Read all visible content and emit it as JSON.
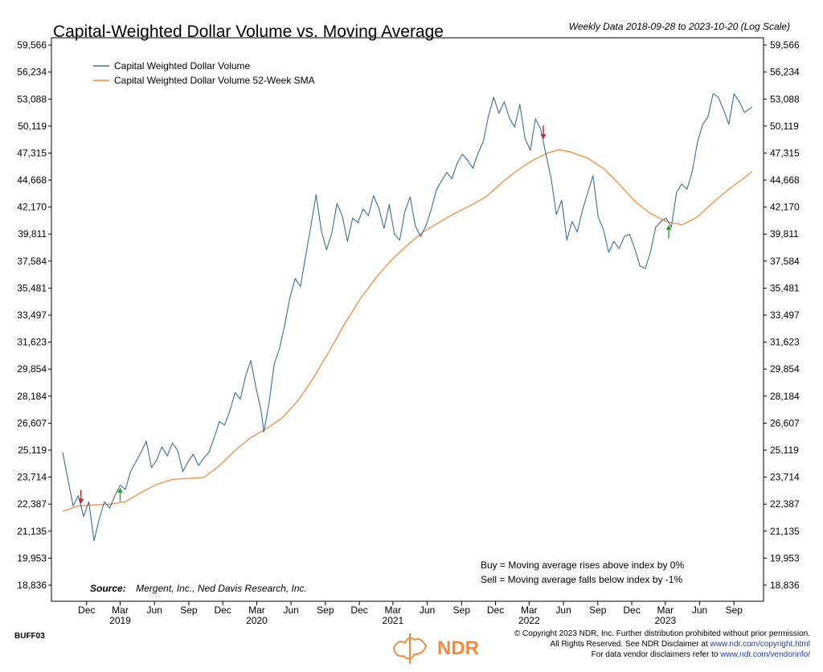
{
  "chart_data": {
    "type": "line",
    "title": "Capital-Weighted Dollar Volume vs. Moving Average",
    "subtitle": "Weekly Data 2018-09-28 to 2023-10-20 (Log Scale)",
    "y_scale": "log",
    "ylim": [
      18200,
      60500
    ],
    "y_ticks": [
      18836,
      19953,
      21135,
      22387,
      23714,
      25119,
      26607,
      28184,
      29854,
      31623,
      33497,
      35481,
      37584,
      39811,
      42170,
      44668,
      47315,
      50119,
      53088,
      56234,
      59566
    ],
    "y_tick_labels": [
      "18,836",
      "19,953",
      "21,135",
      "22,387",
      "23,714",
      "25,119",
      "26,607",
      "28,184",
      "29,854",
      "31,623",
      "33,497",
      "35,481",
      "37,584",
      "39,811",
      "42,170",
      "44,668",
      "47,315",
      "50,119",
      "53,088",
      "56,234",
      "59,566"
    ],
    "x_range": [
      "2018-09-28",
      "2023-10-20"
    ],
    "x_ticks": [
      {
        "date": "2018-12-01",
        "label": "Dec"
      },
      {
        "date": "2019-03-01",
        "label": "Mar"
      },
      {
        "date": "2019-06-01",
        "label": "Jun"
      },
      {
        "date": "2019-09-01",
        "label": "Sep"
      },
      {
        "date": "2019-12-01",
        "label": "Dec"
      },
      {
        "date": "2020-03-01",
        "label": "Mar"
      },
      {
        "date": "2020-06-01",
        "label": "Jun"
      },
      {
        "date": "2020-09-01",
        "label": "Sep"
      },
      {
        "date": "2020-12-01",
        "label": "Dec"
      },
      {
        "date": "2021-03-01",
        "label": "Mar"
      },
      {
        "date": "2021-06-01",
        "label": "Jun"
      },
      {
        "date": "2021-09-01",
        "label": "Sep"
      },
      {
        "date": "2021-12-01",
        "label": "Dec"
      },
      {
        "date": "2022-03-01",
        "label": "Mar"
      },
      {
        "date": "2022-06-01",
        "label": "Jun"
      },
      {
        "date": "2022-09-01",
        "label": "Sep"
      },
      {
        "date": "2022-12-01",
        "label": "Dec"
      },
      {
        "date": "2023-03-01",
        "label": "Mar"
      },
      {
        "date": "2023-06-01",
        "label": "Jun"
      },
      {
        "date": "2023-09-01",
        "label": "Sep"
      }
    ],
    "year_labels": [
      {
        "date": "2019-03-01",
        "label": "2019"
      },
      {
        "date": "2020-03-01",
        "label": "2020"
      },
      {
        "date": "2021-03-01",
        "label": "2021"
      },
      {
        "date": "2022-03-01",
        "label": "2022"
      },
      {
        "date": "2023-03-01",
        "label": "2023"
      }
    ],
    "series": [
      {
        "name": "Capital Weighted Dollar Volume",
        "color": "#3b6e93",
        "points": [
          [
            "2018-09-28",
            25000
          ],
          [
            "2018-10-12",
            23600
          ],
          [
            "2018-10-26",
            22300
          ],
          [
            "2018-11-09",
            22800
          ],
          [
            "2018-11-23",
            21800
          ],
          [
            "2018-12-07",
            22500
          ],
          [
            "2018-12-21",
            20700
          ],
          [
            "2019-01-04",
            21700
          ],
          [
            "2019-01-18",
            22500
          ],
          [
            "2019-02-01",
            22200
          ],
          [
            "2019-02-15",
            22800
          ],
          [
            "2019-03-01",
            23300
          ],
          [
            "2019-03-15",
            23100
          ],
          [
            "2019-03-29",
            24000
          ],
          [
            "2019-04-12",
            24500
          ],
          [
            "2019-04-26",
            25000
          ],
          [
            "2019-05-10",
            25600
          ],
          [
            "2019-05-24",
            24200
          ],
          [
            "2019-06-07",
            24600
          ],
          [
            "2019-06-21",
            25300
          ],
          [
            "2019-07-05",
            24800
          ],
          [
            "2019-07-19",
            25500
          ],
          [
            "2019-08-02",
            25100
          ],
          [
            "2019-08-16",
            24000
          ],
          [
            "2019-08-30",
            24500
          ],
          [
            "2019-09-13",
            24900
          ],
          [
            "2019-09-27",
            24300
          ],
          [
            "2019-10-11",
            24700
          ],
          [
            "2019-10-25",
            25000
          ],
          [
            "2019-11-08",
            25800
          ],
          [
            "2019-11-22",
            26700
          ],
          [
            "2019-12-06",
            26500
          ],
          [
            "2019-12-20",
            27300
          ],
          [
            "2020-01-03",
            28400
          ],
          [
            "2020-01-17",
            28000
          ],
          [
            "2020-01-31",
            29400
          ],
          [
            "2020-02-14",
            30400
          ],
          [
            "2020-02-28",
            28700
          ],
          [
            "2020-03-13",
            27300
          ],
          [
            "2020-03-20",
            26100
          ],
          [
            "2020-04-03",
            27800
          ],
          [
            "2020-04-17",
            30200
          ],
          [
            "2020-05-01",
            31200
          ],
          [
            "2020-05-15",
            32800
          ],
          [
            "2020-05-29",
            34800
          ],
          [
            "2020-06-12",
            36200
          ],
          [
            "2020-06-26",
            35600
          ],
          [
            "2020-07-10",
            38000
          ],
          [
            "2020-07-24",
            40500
          ],
          [
            "2020-08-07",
            43300
          ],
          [
            "2020-08-21",
            40100
          ],
          [
            "2020-09-04",
            38500
          ],
          [
            "2020-09-18",
            39900
          ],
          [
            "2020-10-02",
            42500
          ],
          [
            "2020-10-16",
            41400
          ],
          [
            "2020-10-30",
            39200
          ],
          [
            "2020-11-13",
            41200
          ],
          [
            "2020-11-27",
            40800
          ],
          [
            "2020-12-11",
            42000
          ],
          [
            "2020-12-25",
            41400
          ],
          [
            "2021-01-08",
            43200
          ],
          [
            "2021-01-22",
            42100
          ],
          [
            "2021-02-05",
            40300
          ],
          [
            "2021-02-19",
            42400
          ],
          [
            "2021-03-05",
            39800
          ],
          [
            "2021-03-19",
            39300
          ],
          [
            "2021-04-02",
            41800
          ],
          [
            "2021-04-16",
            43100
          ],
          [
            "2021-04-30",
            40500
          ],
          [
            "2021-05-14",
            39600
          ],
          [
            "2021-05-28",
            40500
          ],
          [
            "2021-06-11",
            41900
          ],
          [
            "2021-06-25",
            43700
          ],
          [
            "2021-07-09",
            44600
          ],
          [
            "2021-07-23",
            45400
          ],
          [
            "2021-08-06",
            44800
          ],
          [
            "2021-08-20",
            46300
          ],
          [
            "2021-09-03",
            47200
          ],
          [
            "2021-09-17",
            46600
          ],
          [
            "2021-10-01",
            45800
          ],
          [
            "2021-10-15",
            47300
          ],
          [
            "2021-10-29",
            48500
          ],
          [
            "2021-11-12",
            51200
          ],
          [
            "2021-11-26",
            53300
          ],
          [
            "2021-12-10",
            51500
          ],
          [
            "2021-12-24",
            52800
          ],
          [
            "2022-01-07",
            51000
          ],
          [
            "2022-01-21",
            50000
          ],
          [
            "2022-02-04",
            52500
          ],
          [
            "2022-02-18",
            48800
          ],
          [
            "2022-03-04",
            47600
          ],
          [
            "2022-03-18",
            50900
          ],
          [
            "2022-04-01",
            49800
          ],
          [
            "2022-04-15",
            47200
          ],
          [
            "2022-04-29",
            44800
          ],
          [
            "2022-05-13",
            41500
          ],
          [
            "2022-05-27",
            42800
          ],
          [
            "2022-06-10",
            39300
          ],
          [
            "2022-06-24",
            40900
          ],
          [
            "2022-07-08",
            40000
          ],
          [
            "2022-07-22",
            41900
          ],
          [
            "2022-08-05",
            43500
          ],
          [
            "2022-08-19",
            45100
          ],
          [
            "2022-09-02",
            41300
          ],
          [
            "2022-09-16",
            40200
          ],
          [
            "2022-09-30",
            38300
          ],
          [
            "2022-10-14",
            39200
          ],
          [
            "2022-10-28",
            38600
          ],
          [
            "2022-11-11",
            39600
          ],
          [
            "2022-11-25",
            39800
          ],
          [
            "2022-12-09",
            38600
          ],
          [
            "2022-12-23",
            37200
          ],
          [
            "2023-01-06",
            37000
          ],
          [
            "2023-01-20",
            38300
          ],
          [
            "2023-02-03",
            40400
          ],
          [
            "2023-02-17",
            40900
          ],
          [
            "2023-03-03",
            41200
          ],
          [
            "2023-03-17",
            40400
          ],
          [
            "2023-03-31",
            43500
          ],
          [
            "2023-04-14",
            44300
          ],
          [
            "2023-04-28",
            43800
          ],
          [
            "2023-05-12",
            45500
          ],
          [
            "2023-05-26",
            48400
          ],
          [
            "2023-06-09",
            50300
          ],
          [
            "2023-06-23",
            51100
          ],
          [
            "2023-07-07",
            53700
          ],
          [
            "2023-07-21",
            53300
          ],
          [
            "2023-08-04",
            51900
          ],
          [
            "2023-08-18",
            50300
          ],
          [
            "2023-09-01",
            53700
          ],
          [
            "2023-09-15",
            52800
          ],
          [
            "2023-09-29",
            51600
          ],
          [
            "2023-10-20",
            52200
          ]
        ]
      },
      {
        "name": "Capital Weighted Dollar Volume 52-Week SMA",
        "color": "#f28c3c",
        "points": [
          [
            "2018-09-28",
            22050
          ],
          [
            "2018-11-09",
            22300
          ],
          [
            "2018-12-21",
            22350
          ],
          [
            "2019-02-01",
            22380
          ],
          [
            "2019-03-15",
            22500
          ],
          [
            "2019-04-26",
            22950
          ],
          [
            "2019-06-07",
            23350
          ],
          [
            "2019-07-19",
            23600
          ],
          [
            "2019-08-30",
            23650
          ],
          [
            "2019-10-11",
            23700
          ],
          [
            "2019-11-22",
            24300
          ],
          [
            "2020-01-03",
            25100
          ],
          [
            "2020-02-14",
            25800
          ],
          [
            "2020-03-27",
            26300
          ],
          [
            "2020-05-08",
            26900
          ],
          [
            "2020-06-19",
            27900
          ],
          [
            "2020-07-31",
            29300
          ],
          [
            "2020-09-11",
            31000
          ],
          [
            "2020-10-23",
            32900
          ],
          [
            "2020-12-04",
            34700
          ],
          [
            "2021-01-15",
            36300
          ],
          [
            "2021-02-26",
            37700
          ],
          [
            "2021-04-09",
            38900
          ],
          [
            "2021-05-21",
            40000
          ],
          [
            "2021-07-02",
            40800
          ],
          [
            "2021-08-13",
            41600
          ],
          [
            "2021-09-24",
            42300
          ],
          [
            "2021-11-05",
            43100
          ],
          [
            "2021-12-17",
            44400
          ],
          [
            "2022-01-28",
            45600
          ],
          [
            "2022-03-11",
            46600
          ],
          [
            "2022-04-22",
            47350
          ],
          [
            "2022-05-20",
            47650
          ],
          [
            "2022-06-17",
            47450
          ],
          [
            "2022-08-05",
            46800
          ],
          [
            "2022-09-16",
            45800
          ],
          [
            "2022-10-28",
            44300
          ],
          [
            "2022-12-09",
            42700
          ],
          [
            "2023-01-20",
            41600
          ],
          [
            "2023-03-03",
            40900
          ],
          [
            "2023-04-14",
            40600
          ],
          [
            "2023-05-26",
            41300
          ],
          [
            "2023-07-07",
            42600
          ],
          [
            "2023-08-18",
            43800
          ],
          [
            "2023-09-29",
            44900
          ],
          [
            "2023-10-20",
            45500
          ]
        ]
      }
    ],
    "signals": [
      {
        "type": "sell",
        "date": "2018-11-16",
        "color": "#d21f1f"
      },
      {
        "type": "buy",
        "date": "2019-03-01",
        "color": "#2aa12a"
      },
      {
        "type": "sell",
        "date": "2022-04-08",
        "color": "#d21f1f"
      },
      {
        "type": "buy",
        "date": "2023-03-10",
        "color": "#2aa12a"
      }
    ],
    "legend_position": "top-left",
    "grid": false,
    "notes": {
      "buy": "Buy = Moving average rises above index by 0%",
      "sell": "Sell = Moving average falls below index by -1%"
    },
    "source_label": "Source:",
    "source_text": "Mergent, Inc., Ned Davis Research, Inc."
  },
  "footer": {
    "chart_code": "BUFF03",
    "copyright_line1": "© Copyright 2023 NDR, Inc. Further distribution prohibited without prior permission.",
    "copyright_line2_prefix": "All Rights Reserved. See NDR Disclaimer at ",
    "copyright_line2_link": "www.ndr.com/copyright.html",
    "copyright_line3_prefix": "For data vendor disclaimers refer to ",
    "copyright_line3_link": "www.ndr.com/vendorinfo/",
    "logo_text": "NDR",
    "logo_color": "#f28c3c"
  }
}
